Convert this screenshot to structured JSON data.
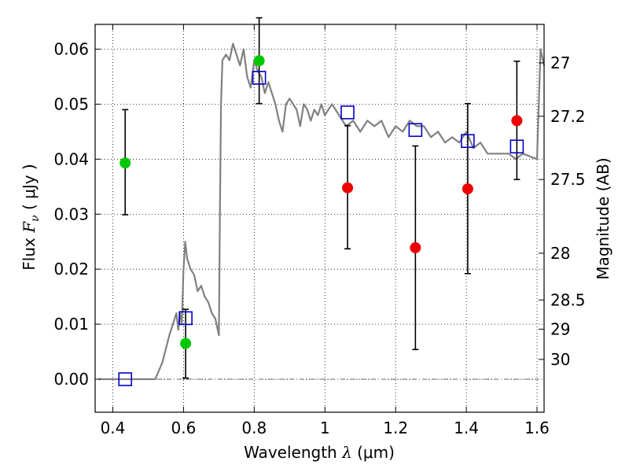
{
  "chart_data": {
    "type": "scatter",
    "xlabel_text": "Wavelength",
    "xlabel_symbol": "λ",
    "xlabel_unit": "(μm)",
    "ylabel_text": "Flux",
    "ylabel_symbol": "F",
    "ylabel_subscript": "ν",
    "ylabel_unit": "( μJy )",
    "y2label": "Magnitude (AB)",
    "xlim": [
      0.35,
      1.62
    ],
    "ylim": [
      -0.006,
      0.0645
    ],
    "grid": true,
    "x_ticks": [
      {
        "value": 0.4,
        "label": "0.4"
      },
      {
        "value": 0.6,
        "label": "0.6"
      },
      {
        "value": 0.8,
        "label": "0.8"
      },
      {
        "value": 1.0,
        "label": "1"
      },
      {
        "value": 1.2,
        "label": "1.2"
      },
      {
        "value": 1.4,
        "label": "1.4"
      },
      {
        "value": 1.6,
        "label": "1.6"
      }
    ],
    "y_ticks": [
      {
        "value": 0.0,
        "label": "0.00"
      },
      {
        "value": 0.01,
        "label": "0.01"
      },
      {
        "value": 0.02,
        "label": "0.02"
      },
      {
        "value": 0.03,
        "label": "0.03"
      },
      {
        "value": 0.04,
        "label": "0.04"
      },
      {
        "value": 0.05,
        "label": "0.05"
      },
      {
        "value": 0.06,
        "label": "0.06"
      }
    ],
    "y2_ticks": [
      {
        "flux": 0.0575,
        "label": "27"
      },
      {
        "flux": 0.0478,
        "label": "27.2"
      },
      {
        "flux": 0.0363,
        "label": "27.5"
      },
      {
        "flux": 0.0229,
        "label": "28"
      },
      {
        "flux": 0.0144,
        "label": "28.5"
      },
      {
        "flux": 0.0091,
        "label": "29"
      },
      {
        "flux": 0.0036,
        "label": "30"
      }
    ],
    "zero_line": 0.0,
    "model_spectrum": {
      "color": "#808080",
      "x": [
        0.36,
        0.4,
        0.45,
        0.5,
        0.52,
        0.54,
        0.56,
        0.58,
        0.585,
        0.59,
        0.595,
        0.6,
        0.605,
        0.61,
        0.615,
        0.62,
        0.63,
        0.64,
        0.65,
        0.66,
        0.67,
        0.68,
        0.69,
        0.7,
        0.703,
        0.706,
        0.71,
        0.72,
        0.73,
        0.74,
        0.75,
        0.76,
        0.77,
        0.78,
        0.79,
        0.8,
        0.81,
        0.82,
        0.83,
        0.84,
        0.85,
        0.86,
        0.87,
        0.88,
        0.89,
        0.9,
        0.91,
        0.92,
        0.93,
        0.94,
        0.95,
        0.96,
        0.97,
        0.98,
        0.99,
        1.0,
        1.02,
        1.04,
        1.06,
        1.08,
        1.1,
        1.12,
        1.14,
        1.16,
        1.18,
        1.2,
        1.22,
        1.24,
        1.26,
        1.28,
        1.3,
        1.32,
        1.34,
        1.36,
        1.38,
        1.4,
        1.42,
        1.44,
        1.46,
        1.48,
        1.5,
        1.52,
        1.54,
        1.56,
        1.58,
        1.6,
        1.61,
        1.62
      ],
      "y": [
        0.0,
        0.0,
        0.0,
        0.0,
        0.0,
        0.003,
        0.008,
        0.012,
        0.009,
        0.012,
        0.01,
        0.02,
        0.025,
        0.022,
        0.021,
        0.02,
        0.019,
        0.016,
        0.017,
        0.015,
        0.014,
        0.012,
        0.011,
        0.008,
        0.03,
        0.05,
        0.058,
        0.059,
        0.058,
        0.061,
        0.059,
        0.057,
        0.06,
        0.055,
        0.053,
        0.058,
        0.056,
        0.055,
        0.052,
        0.054,
        0.052,
        0.05,
        0.047,
        0.045,
        0.05,
        0.051,
        0.05,
        0.049,
        0.046,
        0.05,
        0.049,
        0.047,
        0.049,
        0.048,
        0.05,
        0.048,
        0.05,
        0.048,
        0.046,
        0.047,
        0.045,
        0.047,
        0.046,
        0.047,
        0.044,
        0.046,
        0.045,
        0.047,
        0.046,
        0.046,
        0.044,
        0.045,
        0.043,
        0.044,
        0.043,
        0.045,
        0.042,
        0.043,
        0.041,
        0.041,
        0.041,
        0.041,
        0.04,
        0.041,
        0.0405,
        0.04,
        0.06,
        0.057
      ]
    },
    "model_photometry": {
      "color": "#0000cc",
      "marker": "open-square",
      "x": [
        0.435,
        0.606,
        0.814,
        1.064,
        1.256,
        1.404,
        1.543
      ],
      "y": [
        0.0,
        0.0111,
        0.0548,
        0.0485,
        0.0453,
        0.0433,
        0.0423
      ]
    },
    "detections": {
      "color": "#00c800",
      "marker": "filled-circle",
      "x": [
        0.435,
        0.606,
        0.814
      ],
      "y": [
        0.0393,
        0.0065,
        0.0579
      ],
      "err_low": [
        0.0094,
        0.0063,
        0.0078
      ],
      "err_high": [
        0.0097,
        0.0062,
        0.0078
      ]
    },
    "upper_limits": {
      "color": "#ee0000",
      "marker": "filled-circle",
      "x": [
        1.064,
        1.256,
        1.404,
        1.543
      ],
      "y": [
        0.0348,
        0.0239,
        0.0346,
        0.047
      ],
      "err_low": [
        0.0111,
        0.0185,
        0.0154,
        0.0107
      ],
      "err_high": [
        0.0113,
        0.0185,
        0.0155,
        0.0108
      ]
    }
  }
}
